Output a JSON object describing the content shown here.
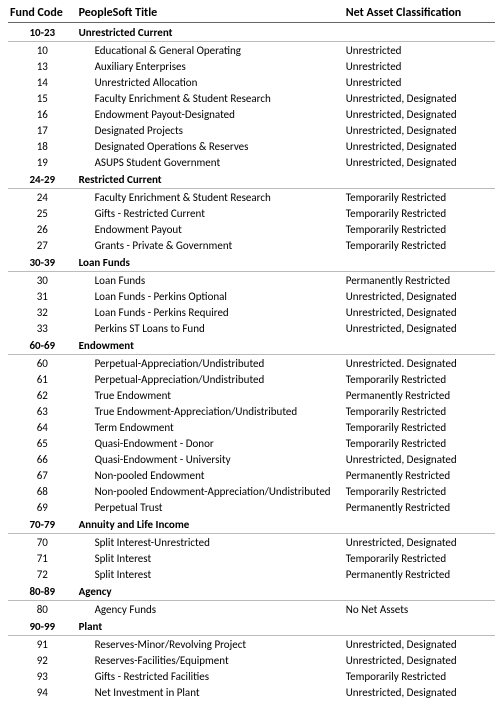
{
  "headers": {
    "fund_code": "Fund Code",
    "title": "PeopleSoft Title",
    "classification": "Net Asset Classification"
  },
  "sections": [
    {
      "range": "10-23",
      "label": "Unrestricted Current",
      "rows": [
        {
          "code": "10",
          "title": "Educational & General Operating",
          "class": "Unrestricted"
        },
        {
          "code": "13",
          "title": "Auxiliary Enterprises",
          "class": "Unrestricted"
        },
        {
          "code": "14",
          "title": "Unrestricted Allocation",
          "class": "Unrestricted"
        },
        {
          "code": "15",
          "title": "Faculty Enrichment & Student Research",
          "class": "Unrestricted, Designated"
        },
        {
          "code": "16",
          "title": "Endowment Payout-Designated",
          "class": "Unrestricted, Designated"
        },
        {
          "code": "17",
          "title": "Designated Projects",
          "class": "Unrestricted, Designated"
        },
        {
          "code": "18",
          "title": "Designated Operations & Reserves",
          "class": "Unrestricted, Designated"
        },
        {
          "code": "19",
          "title": "ASUPS Student Government",
          "class": "Unrestricted, Designated"
        }
      ]
    },
    {
      "range": "24-29",
      "label": "Restricted Current",
      "rows": [
        {
          "code": "24",
          "title": "Faculty Enrichment & Student Research",
          "class": "Temporarily Restricted"
        },
        {
          "code": "25",
          "title": "Gifts - Restricted Current",
          "class": "Temporarily Restricted"
        },
        {
          "code": "26",
          "title": "Endowment Payout",
          "class": "Temporarily Restricted"
        },
        {
          "code": "27",
          "title": "Grants - Private & Government",
          "class": "Temporarily Restricted"
        }
      ]
    },
    {
      "range": "30-39",
      "label": "Loan Funds",
      "rows": [
        {
          "code": "30",
          "title": "Loan Funds",
          "class": "Permanently Restricted"
        },
        {
          "code": "31",
          "title": "Loan Funds - Perkins Optional",
          "class": "Unrestricted, Designated"
        },
        {
          "code": "32",
          "title": "Loan Funds - Perkins Required",
          "class": "Unrestricted, Designated"
        },
        {
          "code": "33",
          "title": "Perkins ST Loans to Fund",
          "class": "Unrestricted, Designated"
        }
      ]
    },
    {
      "range": "60-69",
      "label": "Endowment",
      "rows": [
        {
          "code": "60",
          "title": "Perpetual-Appreciation/Undistributed",
          "class": "Unrestricted. Designated"
        },
        {
          "code": "61",
          "title": "Perpetual-Appreciation/Undistributed",
          "class": "Temporarily Restricted"
        },
        {
          "code": "62",
          "title": "True Endowment",
          "class": "Permanently Restricted"
        },
        {
          "code": "63",
          "title": "True Endowment-Appreciation/Undistributed",
          "class": "Temporarily Restricted"
        },
        {
          "code": "64",
          "title": "Term Endowment",
          "class": "Temporarily Restricted"
        },
        {
          "code": "65",
          "title": "Quasi-Endowment - Donor",
          "class": "Temporarily Restricted"
        },
        {
          "code": "66",
          "title": "Quasi-Endowment - University",
          "class": "Unrestricted, Designated"
        },
        {
          "code": "67",
          "title": "Non-pooled Endowment",
          "class": "Permanently Restricted"
        },
        {
          "code": "68",
          "title": "Non-pooled Endowment-Appreciation/Undistributed",
          "class": "Temporarily Restricted"
        },
        {
          "code": "69",
          "title": "Perpetual Trust",
          "class": "Permanently Restricted"
        }
      ]
    },
    {
      "range": "70-79",
      "label": "Annuity and Life Income",
      "rows": [
        {
          "code": "70",
          "title": "Split Interest-Unrestricted",
          "class": "Unrestricted, Designated"
        },
        {
          "code": "71",
          "title": "Split Interest",
          "class": "Temporarily Restricted"
        },
        {
          "code": "72",
          "title": "Split Interest",
          "class": "Permanently Restricted"
        }
      ]
    },
    {
      "range": "80-89",
      "label": "Agency",
      "rows": [
        {
          "code": "80",
          "title": "Agency Funds",
          "class": "No Net Assets"
        }
      ]
    },
    {
      "range": "90-99",
      "label": "Plant",
      "rows": [
        {
          "code": "91",
          "title": "Reserves-Minor/Revolving Project",
          "class": "Unrestricted, Designated"
        },
        {
          "code": "92",
          "title": "Reserves-Facilities/Equipment",
          "class": "Unrestricted, Designated"
        },
        {
          "code": "93",
          "title": "Gifts - Restricted Facilities",
          "class": "Temporarily Restricted"
        },
        {
          "code": "94",
          "title": "Net Investment in Plant",
          "class": "Unrestricted, Designated"
        }
      ]
    }
  ]
}
